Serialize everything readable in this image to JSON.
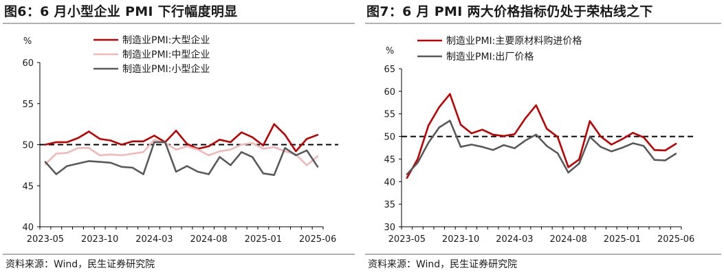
{
  "left": {
    "title": "图6：6 月小型企业 PMI 下行幅度明显",
    "source": "资料来源：Wind，民生证券研究院"
  },
  "right": {
    "title": "图7：6 月 PMI 两大价格指标仍处于荣枯线之下",
    "source": "资料来源：Wind，民生证券研究院"
  },
  "chart_data": [
    {
      "type": "line",
      "ylabel": "%",
      "ylim": [
        40,
        60
      ],
      "yticks": [
        40,
        45,
        50,
        55,
        60
      ],
      "x": [
        "2023-05",
        "2023-06",
        "2023-07",
        "2023-08",
        "2023-09",
        "2023-10",
        "2023-11",
        "2023-12",
        "2024-01",
        "2024-02",
        "2024-03",
        "2024-04",
        "2024-05",
        "2024-06",
        "2024-07",
        "2024-08",
        "2024-09",
        "2024-10",
        "2024-11",
        "2024-12",
        "2025-01",
        "2025-02",
        "2025-03",
        "2025-04",
        "2025-05",
        "2025-06"
      ],
      "xtick_labels": [
        "2023-05",
        "2023-10",
        "2024-03",
        "2024-08",
        "2025-01",
        "2025-06"
      ],
      "reference_line": 50,
      "legend_position": "top",
      "series": [
        {
          "name": "制造业PMI:大型企业",
          "color": "#c00000",
          "values": [
            50.0,
            50.3,
            50.3,
            50.8,
            51.6,
            50.7,
            50.5,
            50.0,
            50.4,
            50.4,
            51.1,
            50.3,
            51.7,
            50.1,
            49.5,
            49.8,
            50.6,
            50.3,
            51.5,
            50.9,
            49.9,
            52.5,
            51.2,
            49.2,
            50.7,
            51.2
          ]
        },
        {
          "name": "制造业PMI:中型企业",
          "color": "#f2b8b8",
          "values": [
            47.6,
            48.9,
            49.0,
            49.6,
            49.6,
            48.7,
            48.8,
            48.7,
            48.9,
            49.1,
            50.6,
            50.2,
            49.4,
            49.8,
            49.4,
            48.7,
            49.2,
            49.4,
            50.0,
            50.2,
            49.5,
            49.7,
            49.2,
            48.8,
            47.5,
            48.6
          ]
        },
        {
          "name": "制造业PMI:小型企业",
          "color": "#595959",
          "values": [
            47.9,
            46.4,
            47.4,
            47.7,
            48.0,
            47.9,
            47.8,
            47.3,
            47.2,
            46.4,
            50.3,
            50.3,
            46.7,
            47.4,
            46.7,
            46.4,
            48.5,
            47.5,
            49.1,
            48.5,
            46.5,
            46.3,
            49.6,
            48.7,
            49.3,
            47.3
          ]
        }
      ]
    },
    {
      "type": "line",
      "ylabel": "%",
      "ylim": [
        30,
        65
      ],
      "yticks": [
        30,
        35,
        40,
        45,
        50,
        55,
        60,
        65
      ],
      "x": [
        "2023-05",
        "2023-06",
        "2023-07",
        "2023-08",
        "2023-09",
        "2023-10",
        "2023-11",
        "2023-12",
        "2024-01",
        "2024-02",
        "2024-03",
        "2024-04",
        "2024-05",
        "2024-06",
        "2024-07",
        "2024-08",
        "2024-09",
        "2024-10",
        "2024-11",
        "2024-12",
        "2025-01",
        "2025-02",
        "2025-03",
        "2025-04",
        "2025-05",
        "2025-06"
      ],
      "xtick_labels": [
        "2023-05",
        "2023-10",
        "2024-03",
        "2024-08",
        "2025-01",
        "2025-06"
      ],
      "reference_line": 50,
      "legend_position": "top",
      "series": [
        {
          "name": "制造业PMI:主要原材料购进价格",
          "color": "#c00000",
          "values": [
            40.8,
            45.0,
            52.4,
            56.5,
            59.4,
            52.6,
            50.7,
            51.5,
            50.4,
            50.1,
            50.5,
            54.0,
            56.9,
            51.7,
            49.9,
            43.2,
            44.9,
            53.4,
            50.0,
            48.2,
            49.4,
            50.8,
            49.8,
            47.0,
            46.9,
            48.4
          ]
        },
        {
          "name": "制造业PMI:出厂价格",
          "color": "#595959",
          "values": [
            41.6,
            44.2,
            48.6,
            52.0,
            53.5,
            47.7,
            48.2,
            47.7,
            47.0,
            48.1,
            47.4,
            49.1,
            50.4,
            47.9,
            46.3,
            42.0,
            44.0,
            49.9,
            47.7,
            46.7,
            47.5,
            48.5,
            47.9,
            44.8,
            44.7,
            46.2
          ]
        }
      ]
    }
  ]
}
